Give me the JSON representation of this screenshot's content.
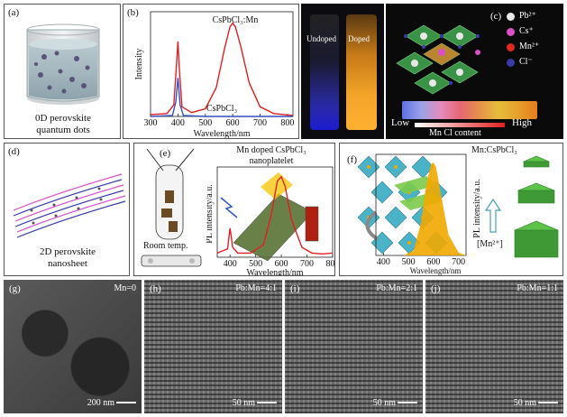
{
  "panel_a": {
    "label": "(a)",
    "caption_line1": "0D perovskite",
    "caption_line2": "quantum dots"
  },
  "panel_b": {
    "label": "(b)",
    "series_label_doped": "CsPbCl₃:Mn",
    "series_label_undoped": "CsPbCl₃",
    "ylabel": "Intensity",
    "xlabel": "Wavelength/nm",
    "xticks": [
      "300",
      "400",
      "500",
      "600",
      "700",
      "800"
    ]
  },
  "vials": {
    "undoped_label": "Undoped",
    "doped_label": "Doped"
  },
  "panel_c": {
    "label": "(c)",
    "legend": [
      {
        "name": "Pb²⁺",
        "color": "#e8e8e8"
      },
      {
        "name": "Cs⁺",
        "color": "#d84fc8"
      },
      {
        "name": "Mn²⁺",
        "color": "#e0281f"
      },
      {
        "name": "Cl⁻",
        "color": "#3a3aa8"
      }
    ],
    "scale_low": "Low",
    "scale_high": "High",
    "scale_title": "Mn Cl content"
  },
  "panel_d": {
    "label": "(d)",
    "caption_line1": "2D perovskite",
    "caption_line2": "nanosheet"
  },
  "panel_e": {
    "label": "(e)",
    "room_temp": "Room temp.",
    "title_line1": "Mn doped CsPbCl₃",
    "title_line2": "nanoplatelet",
    "ylabel": "PL intensity/a.u.",
    "xlabel": "Wavelength/nm",
    "xticks": [
      "400",
      "500",
      "600",
      "700",
      "800"
    ]
  },
  "panel_f": {
    "label": "(f)",
    "title": "Mn:CsPbCl₃",
    "ylabel": "PL intensity/a.u.",
    "xlabel": "Wavelength/nm",
    "xticks": [
      "400",
      "500",
      "600",
      "700"
    ],
    "mn_label": "[Mn²⁺]"
  },
  "tem": [
    {
      "label": "(g)",
      "ratio": "Mn=0",
      "scale": "200 nm"
    },
    {
      "label": "(h)",
      "ratio": "Pb:Mn=4:1",
      "scale": "50 nm"
    },
    {
      "label": "(i)",
      "ratio": "Pb:Mn=2:1",
      "scale": "50 nm"
    },
    {
      "label": "(j)",
      "ratio": "Pb:Mn=1:1",
      "scale": "50 nm"
    }
  ],
  "chart_data": [
    {
      "type": "line",
      "xlabel": "Wavelength/nm",
      "ylabel": "Intensity",
      "xlim": [
        300,
        820
      ],
      "series": [
        {
          "name": "CsPbCl₃:Mn",
          "color": "#e02020",
          "x": [
            300,
            360,
            385,
            395,
            400,
            405,
            415,
            450,
            500,
            540,
            570,
            590,
            600,
            610,
            630,
            660,
            700,
            750,
            820
          ],
          "y": [
            0.02,
            0.03,
            0.12,
            0.55,
            0.78,
            0.5,
            0.1,
            0.04,
            0.08,
            0.3,
            0.7,
            0.93,
            0.97,
            0.93,
            0.72,
            0.35,
            0.1,
            0.03,
            0.01
          ]
        },
        {
          "name": "CsPbCl₃",
          "color": "#3050c0",
          "x": [
            300,
            380,
            392,
            400,
            408,
            420,
            500,
            820
          ],
          "y": [
            0.0,
            0.01,
            0.15,
            0.4,
            0.12,
            0.01,
            0.0,
            0.0
          ]
        }
      ]
    },
    {
      "type": "line",
      "xlabel": "Wavelength/nm",
      "ylabel": "PL intensity/a.u.",
      "xlim": [
        350,
        800
      ],
      "series": [
        {
          "name": "",
          "color": "#e02020",
          "x": [
            350,
            390,
            400,
            410,
            430,
            480,
            530,
            560,
            585,
            600,
            615,
            640,
            680,
            720,
            760,
            800
          ],
          "y": [
            0.05,
            0.1,
            0.35,
            0.12,
            0.05,
            0.05,
            0.15,
            0.5,
            0.92,
            0.97,
            0.85,
            0.45,
            0.12,
            0.05,
            0.04,
            0.05
          ]
        }
      ]
    },
    {
      "type": "area",
      "xlabel": "Wavelength/nm",
      "ylabel": "PL intensity/a.u.",
      "xlim": [
        370,
        730
      ],
      "series": [
        {
          "name": "",
          "color": "#f2a800",
          "x": [
            370,
            480,
            520,
            550,
            570,
            590,
            600,
            610,
            630,
            660,
            700,
            730
          ],
          "y": [
            0.0,
            0.0,
            0.05,
            0.35,
            0.75,
            0.98,
            1.0,
            0.95,
            0.65,
            0.22,
            0.03,
            0.0
          ]
        }
      ]
    }
  ]
}
